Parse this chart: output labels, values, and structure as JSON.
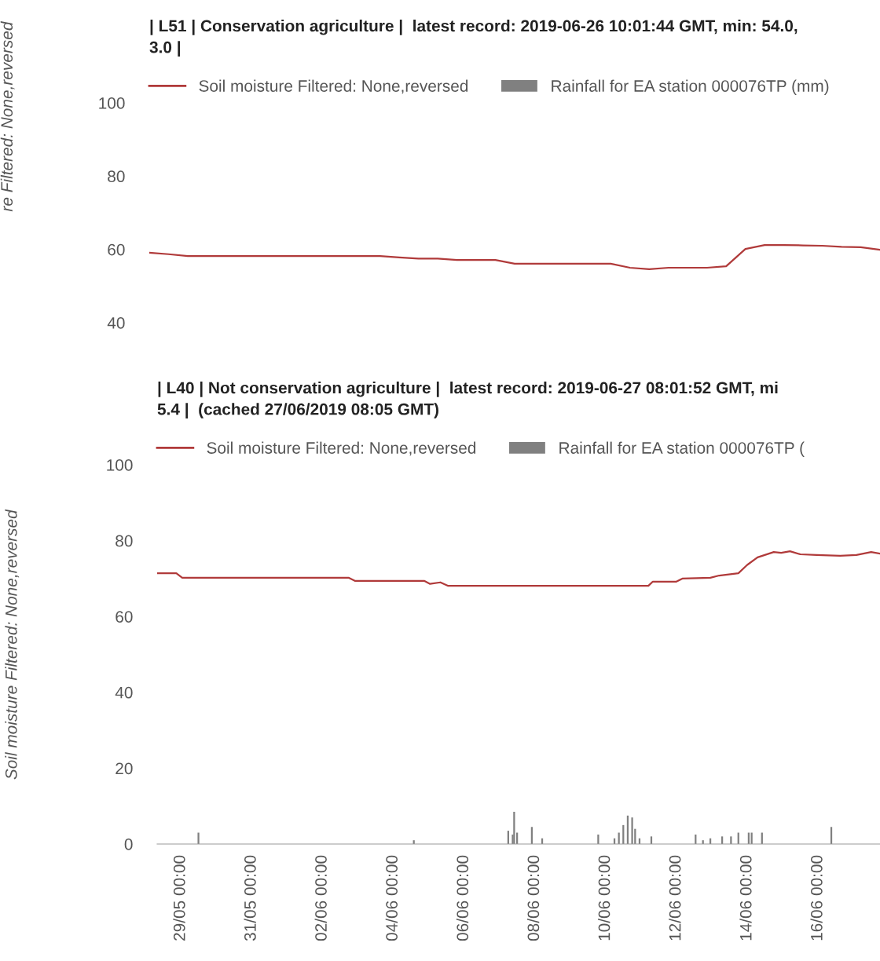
{
  "chart_data": [
    {
      "type": "line",
      "title": "| L51 | Conservation agriculture |  latest record: 2019-06-26 10:01:44 GMT, min: 54.0,\n3.0 |",
      "ylabel": "re Filtered: None,reversed",
      "legend": "top left",
      "tick_labels": "y",
      "categories": [
        null,
        null,
        null,
        null,
        null,
        null,
        null,
        null,
        null,
        null,
        null,
        null,
        null,
        null,
        null,
        null,
        null,
        null,
        null,
        null,
        null,
        null,
        null,
        null,
        null,
        null,
        null,
        null,
        null,
        null,
        null,
        null,
        null,
        null,
        null,
        null,
        null,
        null,
        null
      ],
      "ylim": [
        40,
        100
      ],
      "yticks": [
        40,
        60,
        80,
        100
      ],
      "series": [
        {
          "name": "Soil moisture Filtered: None,reversed",
          "color": "#b03a3a",
          "values": [
            59.1,
            58.7,
            58.2,
            58.2,
            58.2,
            58.2,
            58.2,
            58.2,
            58.2,
            58.2,
            58.2,
            58.2,
            58.2,
            57.8,
            57.5,
            57.5,
            57.1,
            57.1,
            57.1,
            56.1,
            56.1,
            56.1,
            56.1,
            56.1,
            56.1,
            55.0,
            54.6,
            55.0,
            55.0,
            55.0,
            55.4,
            60.1,
            61.2,
            61.2,
            61.1,
            61.0,
            60.7,
            60.6,
            59.9
          ]
        },
        {
          "name": "Rainfall for EA station 000076TP (mm)",
          "type": "bar",
          "color": "#808080",
          "values": [
            null,
            null,
            null,
            null,
            null,
            null,
            null,
            null,
            null,
            null,
            null,
            null,
            null,
            null,
            null,
            null,
            null,
            null,
            null,
            null,
            null,
            null,
            null,
            null,
            null,
            null,
            null,
            null,
            null,
            null,
            null,
            null,
            null,
            null,
            null,
            null,
            null,
            null,
            null
          ]
        }
      ]
    },
    {
      "type": "line",
      "title": "| L40 | Not conservation agriculture |  latest record: 2019-06-27 08:01:52 GMT, mi\n5.4 |  (cached 27/06/2019 08:05 GMT)",
      "ylabel": "Soil moisture Filtered: None,reversed",
      "legend": "top left",
      "xlim": [
        "2019-05-28T08:00",
        "2019-06-17T18:00"
      ],
      "ylim": [
        0,
        100
      ],
      "yticks": [
        0,
        20,
        40,
        60,
        80,
        100
      ],
      "xticks": [
        {
          "value": "2019-05-29T00:00",
          "label": "29/05 00:00"
        },
        {
          "value": "2019-05-31T00:00",
          "label": "31/05 00:00"
        },
        {
          "value": "2019-06-02T00:00",
          "label": "02/06 00:00"
        },
        {
          "value": "2019-06-04T00:00",
          "label": "04/06 00:00"
        },
        {
          "value": "2019-06-06T00:00",
          "label": "06/06 00:00"
        },
        {
          "value": "2019-06-08T00:00",
          "label": "08/06 00:00"
        },
        {
          "value": "2019-06-10T00:00",
          "label": "10/06 00:00"
        },
        {
          "value": "2019-06-12T00:00",
          "label": "12/06 00:00"
        },
        {
          "value": "2019-06-14T00:00",
          "label": "14/06 00:00"
        },
        {
          "value": "2019-06-16T00:00",
          "label": "16/06 00:00"
        }
      ],
      "series": [
        {
          "name": "Soil moisture Filtered: None,reversed",
          "color": "#b03a3a",
          "x": [
            "2019-05-28T08:00",
            "2019-05-28T21:00",
            "2019-05-29T01:00",
            "2019-06-02T18:00",
            "2019-06-02T22:00",
            "2019-06-04T21:00",
            "2019-06-05T01:00",
            "2019-06-05T08:00",
            "2019-06-05T13:00",
            "2019-06-11T05:00",
            "2019-06-11T08:00",
            "2019-06-12T00:00",
            "2019-06-12T04:00",
            "2019-06-12T23:00",
            "2019-06-13T05:00",
            "2019-06-13T18:00",
            "2019-06-14T00:00",
            "2019-06-14T07:00",
            "2019-06-14T18:00",
            "2019-06-14T23:00",
            "2019-06-15T05:00",
            "2019-06-15T12:00",
            "2019-06-15T23:00",
            "2019-06-16T15:00",
            "2019-06-17T02:00",
            "2019-06-17T12:00",
            "2019-06-17T18:00"
          ],
          "values": [
            71.4,
            71.4,
            70.2,
            70.2,
            69.4,
            69.4,
            68.6,
            69.0,
            68.1,
            68.1,
            69.2,
            69.2,
            70.0,
            70.2,
            70.8,
            71.4,
            73.6,
            75.6,
            77.0,
            76.8,
            77.2,
            76.4,
            76.2,
            76.0,
            76.2,
            77.0,
            76.6
          ]
        },
        {
          "name": "Rainfall for EA station 000076TP (",
          "type": "bar",
          "color": "#808080",
          "x": [
            "2019-05-29T12:00",
            "2019-06-04T14:00",
            "2019-06-07T06:00",
            "2019-06-07T09:00",
            "2019-06-07T10:00",
            "2019-06-07T12:00",
            "2019-06-07T22:00",
            "2019-06-08T05:00",
            "2019-06-09T19:00",
            "2019-06-10T06:00",
            "2019-06-10T09:00",
            "2019-06-10T12:00",
            "2019-06-10T15:00",
            "2019-06-10T18:00",
            "2019-06-10T20:00",
            "2019-06-10T23:00",
            "2019-06-11T07:00",
            "2019-06-12T13:00",
            "2019-06-12T18:00",
            "2019-06-12T23:00",
            "2019-06-13T07:00",
            "2019-06-13T13:00",
            "2019-06-13T18:00",
            "2019-06-14T01:00",
            "2019-06-14T03:00",
            "2019-06-14T10:00",
            "2019-06-16T09:00"
          ],
          "values": [
            3,
            1,
            3.5,
            2.5,
            8.5,
            3,
            4.5,
            1.5,
            2.5,
            1.5,
            3,
            5,
            7.5,
            7,
            4,
            1.5,
            2,
            2.5,
            1,
            1.5,
            2,
            2,
            3,
            3,
            3,
            3,
            4.5
          ]
        }
      ]
    }
  ]
}
